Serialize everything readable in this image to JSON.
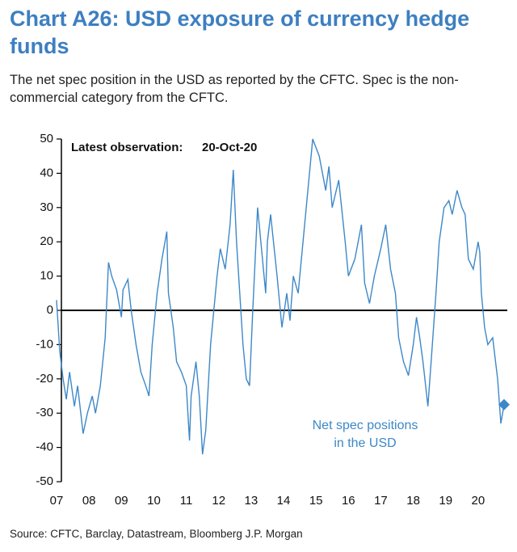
{
  "chart_data": {
    "type": "line",
    "title": "Chart A26: USD exposure of currency hedge funds",
    "subtitle": "The net spec position in the USD as reported by the CFTC. Spec is the non-commercial category from the CFTC.",
    "source": "Source: CFTC, Barclay, Datastream, Bloomberg J.P. Morgan",
    "annotations": [
      "Latest observation:",
      "20-Oct-20",
      "Net spec positions in the USD"
    ],
    "x": [
      7.0,
      7.1,
      7.2,
      7.3,
      7.4,
      7.55,
      7.65,
      7.82,
      7.95,
      8.1,
      8.2,
      8.35,
      8.5,
      8.6,
      8.7,
      8.85,
      9.0,
      9.05,
      9.2,
      9.3,
      9.45,
      9.6,
      9.75,
      9.85,
      9.95,
      10.1,
      10.25,
      10.4,
      10.45,
      10.6,
      10.7,
      10.85,
      11.0,
      11.1,
      11.15,
      11.3,
      11.4,
      11.5,
      11.6,
      11.75,
      11.85,
      11.95,
      12.05,
      12.2,
      12.35,
      12.45,
      12.55,
      12.65,
      12.75,
      12.85,
      12.95,
      13.05,
      13.2,
      13.3,
      13.45,
      13.5,
      13.6,
      13.8,
      13.95,
      14.1,
      14.2,
      14.3,
      14.45,
      14.6,
      14.7,
      14.8,
      14.9,
      15.1,
      15.3,
      15.4,
      15.5,
      15.7,
      15.9,
      16.0,
      16.2,
      16.4,
      16.5,
      16.65,
      16.8,
      17.0,
      17.15,
      17.3,
      17.45,
      17.55,
      17.7,
      17.85,
      18.0,
      18.1,
      18.2,
      18.3,
      18.45,
      18.55,
      18.7,
      18.8,
      18.95,
      19.1,
      19.2,
      19.35,
      19.5,
      19.6,
      19.7,
      19.85,
      20.0,
      20.05,
      20.1,
      20.2,
      20.3,
      20.45,
      20.6,
      20.7,
      20.8
    ],
    "series": [
      {
        "name": "Net spec positions in the USD",
        "color": "#3d88c8",
        "values": [
          3,
          -12,
          -20,
          -26,
          -18,
          -28,
          -22,
          -36,
          -30,
          -25,
          -30,
          -22,
          -8,
          14,
          10,
          6,
          -2,
          6,
          9,
          0,
          -10,
          -18,
          -22,
          -25,
          -10,
          5,
          15,
          23,
          5,
          -5,
          -15,
          -18,
          -22,
          -38,
          -25,
          -15,
          -25,
          -42,
          -35,
          -10,
          0,
          10,
          18,
          12,
          25,
          41,
          20,
          5,
          -10,
          -20,
          -22,
          0,
          30,
          20,
          5,
          20,
          28,
          10,
          -5,
          5,
          -3,
          10,
          5,
          20,
          30,
          40,
          50,
          45,
          35,
          42,
          30,
          38,
          20,
          10,
          15,
          25,
          8,
          2,
          10,
          18,
          25,
          12,
          5,
          -8,
          -15,
          -19,
          -10,
          -2,
          -8,
          -15,
          -28,
          -15,
          5,
          20,
          30,
          32,
          28,
          35,
          30,
          28,
          15,
          12,
          20,
          17,
          5,
          -5,
          -10,
          -8,
          -20,
          -33,
          -27.5
        ]
      }
    ],
    "xlim": [
      6.8,
      20.9
    ],
    "xticks": [
      {
        "value": 7,
        "label": "07"
      },
      {
        "value": 8,
        "label": "08"
      },
      {
        "value": 9,
        "label": "09"
      },
      {
        "value": 10,
        "label": "10"
      },
      {
        "value": 11,
        "label": "11"
      },
      {
        "value": 12,
        "label": "12"
      },
      {
        "value": 13,
        "label": "13"
      },
      {
        "value": 14,
        "label": "14"
      },
      {
        "value": 15,
        "label": "15"
      },
      {
        "value": 16,
        "label": "16"
      },
      {
        "value": 17,
        "label": "17"
      },
      {
        "value": 18,
        "label": "18"
      },
      {
        "value": 19,
        "label": "19"
      },
      {
        "value": 20,
        "label": "20"
      }
    ],
    "ylim": [
      -50,
      50
    ],
    "yticks": [
      -50,
      -40,
      -30,
      -20,
      -10,
      0,
      10,
      20,
      30,
      40,
      50
    ]
  }
}
